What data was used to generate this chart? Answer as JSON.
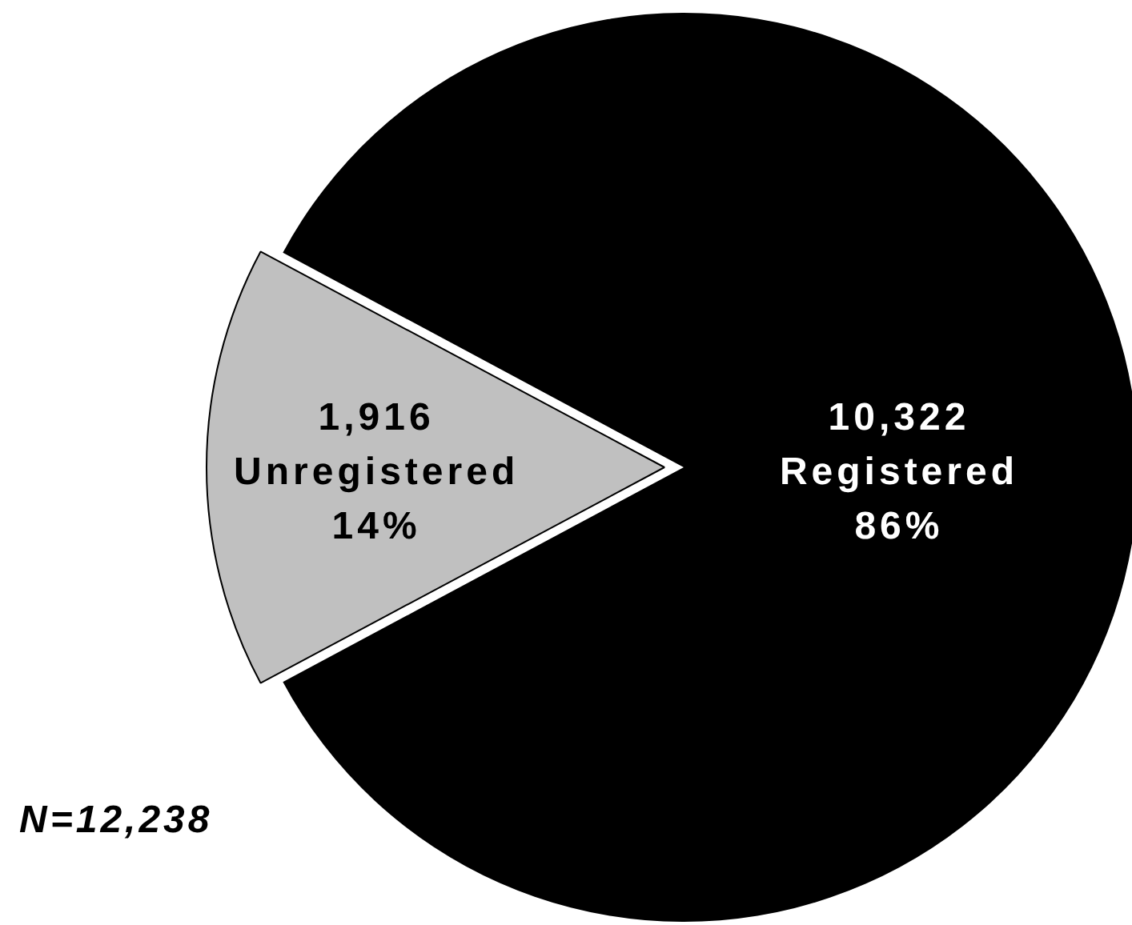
{
  "chart_data": {
    "type": "pie",
    "categories": [
      "Unregistered",
      "Registered"
    ],
    "values": [
      1916,
      10322
    ],
    "colors": [
      "#c0c0c0",
      "#000000"
    ],
    "value_labels": [
      "1,916",
      "10,322"
    ],
    "annotations": [
      {
        "text": "14%",
        "x": "Unregistered"
      },
      {
        "text": "86%",
        "x": "Registered"
      },
      "N=12,238"
    ]
  }
}
